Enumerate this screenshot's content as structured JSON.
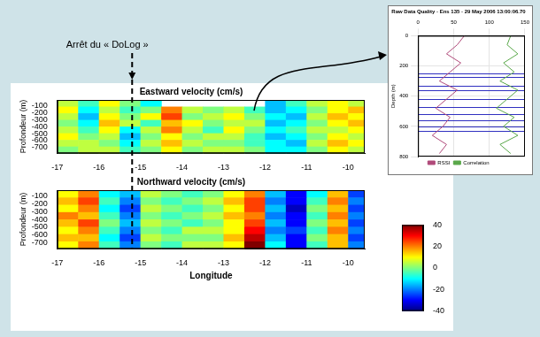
{
  "annotation": {
    "text": "Arrêt du « DoLog »",
    "x": -15.2
  },
  "chart_data": [
    {
      "type": "heatmap",
      "title": "Eastward velocity (cm/s)",
      "y_label": "Profondeur (m)",
      "x": [
        -16.75,
        -16.25,
        -15.75,
        -15.25,
        -14.75,
        -14.25,
        -13.75,
        -13.25,
        -12.75,
        -12.25,
        -11.75,
        -11.25,
        -10.75,
        -10.25,
        -9.75
      ],
      "y": [
        -67.5,
        -162.5,
        -257.5,
        -352.5,
        -447.5,
        -542.5,
        -637.5,
        -732.5
      ],
      "values": [
        [
          5,
          -5,
          10,
          0,
          -10,
          null,
          null,
          null,
          null,
          null,
          -15,
          -5,
          5,
          10,
          5
        ],
        [
          10,
          -10,
          5,
          -5,
          0,
          20,
          5,
          0,
          5,
          -5,
          -15,
          -10,
          0,
          10,
          15
        ],
        [
          5,
          -15,
          10,
          0,
          10,
          25,
          0,
          5,
          10,
          0,
          -10,
          -15,
          5,
          15,
          10
        ],
        [
          0,
          -10,
          15,
          5,
          -5,
          15,
          10,
          0,
          5,
          5,
          -15,
          -10,
          0,
          10,
          15
        ],
        [
          5,
          -5,
          10,
          -10,
          5,
          20,
          5,
          -5,
          10,
          0,
          -10,
          -5,
          5,
          5,
          10
        ],
        [
          10,
          0,
          5,
          -15,
          0,
          10,
          0,
          5,
          5,
          -5,
          -15,
          -10,
          0,
          10,
          5
        ],
        [
          5,
          5,
          0,
          -10,
          5,
          15,
          5,
          0,
          0,
          -5,
          -10,
          -15,
          5,
          15,
          10
        ],
        [
          0,
          5,
          5,
          -5,
          0,
          10,
          0,
          5,
          5,
          0,
          -10,
          -10,
          0,
          10,
          5
        ]
      ],
      "xlim": [
        -17,
        -9.6
      ],
      "xticks": [
        -17,
        -16,
        -15,
        -14,
        -13,
        -12,
        -11,
        -10
      ],
      "ylim": [
        -780,
        -20
      ],
      "yticks": [
        -700,
        -600,
        -500,
        -400,
        -300,
        -200,
        -100
      ],
      "grid": false
    },
    {
      "type": "heatmap",
      "title": "Northward velocity (cm/s)",
      "y_label": "Profondeur (m)",
      "x_label": "Longitude",
      "x": [
        -16.75,
        -16.25,
        -15.75,
        -15.25,
        -14.75,
        -14.25,
        -13.75,
        -13.25,
        -12.75,
        -12.25,
        -11.75,
        -11.25,
        -10.75,
        -10.25,
        -9.75
      ],
      "y": [
        -67.5,
        -162.5,
        -257.5,
        -352.5,
        -447.5,
        -542.5,
        -637.5,
        -732.5
      ],
      "values": [
        [
          10,
          20,
          -10,
          -15,
          5,
          0,
          -5,
          0,
          10,
          20,
          -15,
          -30,
          -10,
          15,
          -25
        ],
        [
          15,
          25,
          -5,
          -20,
          0,
          -5,
          0,
          5,
          15,
          25,
          -20,
          -30,
          -5,
          20,
          -20
        ],
        [
          10,
          20,
          -10,
          -25,
          5,
          0,
          -5,
          0,
          10,
          25,
          -15,
          -35,
          0,
          15,
          -25
        ],
        [
          20,
          15,
          -5,
          -20,
          0,
          -5,
          0,
          5,
          15,
          20,
          -20,
          -30,
          -5,
          20,
          -20
        ],
        [
          15,
          25,
          0,
          -15,
          5,
          0,
          -5,
          0,
          10,
          25,
          -15,
          -30,
          0,
          15,
          -25
        ],
        [
          10,
          20,
          -5,
          -20,
          0,
          -5,
          5,
          5,
          10,
          30,
          -20,
          -25,
          -5,
          20,
          -20
        ],
        [
          15,
          15,
          -10,
          -25,
          5,
          0,
          0,
          0,
          15,
          35,
          -15,
          -30,
          0,
          15,
          -25
        ],
        [
          10,
          20,
          -5,
          -20,
          0,
          -5,
          5,
          5,
          10,
          40,
          -10,
          -30,
          -5,
          15,
          -20
        ]
      ],
      "xlim": [
        -17,
        -9.6
      ],
      "xticks": [
        -17,
        -16,
        -15,
        -14,
        -13,
        -12,
        -11,
        -10
      ],
      "ylim": [
        -780,
        -20
      ],
      "yticks": [
        -700,
        -600,
        -500,
        -400,
        -300,
        -200,
        -100
      ],
      "grid": false
    },
    {
      "type": "colorbar",
      "ylim": [
        -40,
        40
      ],
      "yticks": [
        -40,
        -20,
        0,
        20,
        40
      ]
    },
    {
      "type": "line",
      "title": "Raw Data Quality - Ens 135 - 29 May 2006 13:00:06.70",
      "y_label": "Depth (m)",
      "xlim": [
        0,
        150
      ],
      "xticks": [
        0,
        50,
        100,
        150
      ],
      "ylim": [
        800,
        0
      ],
      "yticks": [
        0,
        200,
        400,
        600,
        800
      ],
      "grid": true,
      "legend": "bottom",
      "series": [
        {
          "name": "RSSI",
          "color": "#b04a7a",
          "x": [
            65,
            55,
            40,
            60,
            45,
            30,
            55,
            40,
            25,
            45,
            35,
            20,
            40,
            30
          ],
          "y": [
            0,
            60,
            120,
            180,
            240,
            300,
            360,
            420,
            480,
            540,
            600,
            660,
            720,
            780
          ]
        },
        {
          "name": "Correlation",
          "color": "#5aa84a",
          "x": [
            130,
            125,
            140,
            120,
            135,
            115,
            140,
            125,
            110,
            135,
            120,
            140,
            115,
            130
          ],
          "y": [
            0,
            60,
            120,
            180,
            240,
            300,
            360,
            420,
            480,
            540,
            600,
            660,
            720,
            780
          ]
        }
      ],
      "reference_lines": {
        "color": "#3030c0",
        "values": [
          250,
          270,
          330,
          360,
          420,
          470,
          520,
          560,
          600,
          630
        ]
      }
    }
  ]
}
